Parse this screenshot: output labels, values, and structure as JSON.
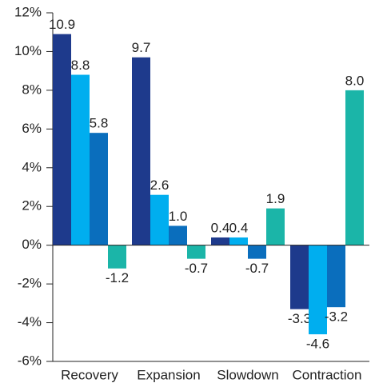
{
  "chart_data": {
    "type": "bar",
    "categories": [
      "Recovery",
      "Expansion",
      "Slowdown",
      "Contraction"
    ],
    "series": [
      {
        "color": "#1e3a8c",
        "values": [
          10.9,
          9.7,
          0.4,
          -3.3
        ]
      },
      {
        "color": "#00aeef",
        "values": [
          8.8,
          2.6,
          0.4,
          -4.6
        ]
      },
      {
        "color": "#0a6ebd",
        "values": [
          5.8,
          1.0,
          -0.7,
          -3.2
        ],
        "value_labels": [
          "5.8",
          "1.0",
          "-0.7",
          "-3.2"
        ]
      },
      {
        "color": "#1bb5a8",
        "values": [
          -1.2,
          -0.7,
          1.9,
          8.0
        ],
        "value_labels": [
          "-1.2",
          "-0.7",
          "1.9",
          "8.0"
        ]
      }
    ],
    "ylim": [
      -6,
      12
    ],
    "yticks": [
      {
        "value": -6,
        "label": "-6%"
      },
      {
        "value": -4,
        "label": "-4%"
      },
      {
        "value": -2,
        "label": "-2%"
      },
      {
        "value": 0,
        "label": "0%"
      },
      {
        "value": 2,
        "label": "2%"
      },
      {
        "value": 4,
        "label": "4%"
      },
      {
        "value": 6,
        "label": "6%"
      },
      {
        "value": 8,
        "label": "8%"
      },
      {
        "value": 10,
        "label": "10%"
      },
      {
        "value": 12,
        "label": "12%"
      }
    ]
  }
}
